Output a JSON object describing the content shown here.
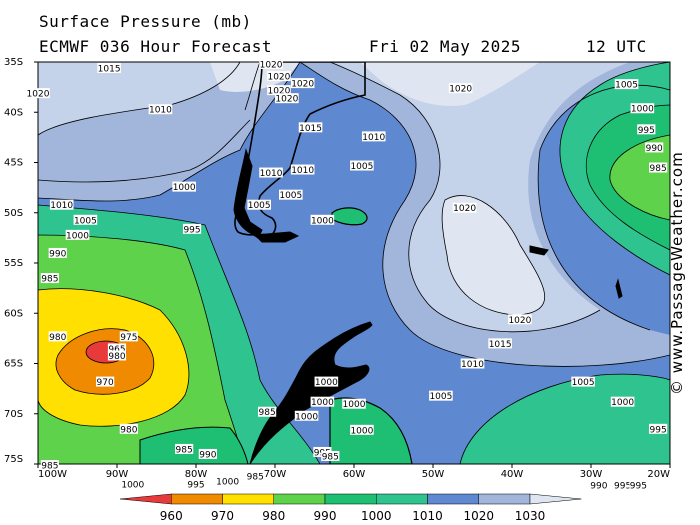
{
  "header": {
    "title": "Surface Pressure (mb)",
    "model": "ECMWF 036 Hour Forecast",
    "date": "Fri 02 May 2025",
    "time": "12 UTC"
  },
  "credit": "© www.PassageWeather.com",
  "map": {
    "lat_labels": [
      "35S",
      "40S",
      "45S",
      "50S",
      "55S",
      "60S",
      "65S",
      "70S",
      "75S"
    ],
    "lon_labels": [
      "100W",
      "90W",
      "80W",
      "70W",
      "60W",
      "50W",
      "40W",
      "30W",
      "20W"
    ],
    "isobar_labels": [
      {
        "text": "1015",
        "lon": -91,
        "lat": -35.7
      },
      {
        "text": "1020",
        "lon": -100,
        "lat": -38.2
      },
      {
        "text": "1010",
        "lon": -84.5,
        "lat": -39.8
      },
      {
        "text": "1020",
        "lon": -70.5,
        "lat": -35.3
      },
      {
        "text": "1020",
        "lon": -69.5,
        "lat": -36.5
      },
      {
        "text": "1020",
        "lon": -66.5,
        "lat": -37.2
      },
      {
        "text": "1020",
        "lon": -69.5,
        "lat": -37.9
      },
      {
        "text": "1020",
        "lon": -68.5,
        "lat": -38.7
      },
      {
        "text": "1015",
        "lon": -65.5,
        "lat": -41.6
      },
      {
        "text": "1010",
        "lon": -57.5,
        "lat": -42.5
      },
      {
        "text": "1010",
        "lon": -70.5,
        "lat": -46.1
      },
      {
        "text": "1010",
        "lon": -66.5,
        "lat": -45.8
      },
      {
        "text": "1005",
        "lon": -59,
        "lat": -45.4
      },
      {
        "text": "1005",
        "lon": -68,
        "lat": -48.3
      },
      {
        "text": "1005",
        "lon": -72,
        "lat": -49.3
      },
      {
        "text": "1000",
        "lon": -81.5,
        "lat": -47.5
      },
      {
        "text": "1000",
        "lon": -64,
        "lat": -50.8
      },
      {
        "text": "1010",
        "lon": -97,
        "lat": -49.3
      },
      {
        "text": "1005",
        "lon": -94,
        "lat": -50.8
      },
      {
        "text": "1000",
        "lon": -95,
        "lat": -52.3
      },
      {
        "text": "995",
        "lon": -80.5,
        "lat": -51.7
      },
      {
        "text": "990",
        "lon": -97.5,
        "lat": -54.1
      },
      {
        "text": "985",
        "lon": -98.5,
        "lat": -56.6
      },
      {
        "text": "980",
        "lon": -97.5,
        "lat": -62.4
      },
      {
        "text": "975",
        "lon": -88.5,
        "lat": -62.4
      },
      {
        "text": "965",
        "lon": -90,
        "lat": -63.6
      },
      {
        "text": "980",
        "lon": -90,
        "lat": -64.3
      },
      {
        "text": "970",
        "lon": -91.5,
        "lat": -66.9
      },
      {
        "text": "980",
        "lon": -88.5,
        "lat": -71.6
      },
      {
        "text": "985",
        "lon": -81.5,
        "lat": -73.6
      },
      {
        "text": "990",
        "lon": -78.5,
        "lat": -74.1
      },
      {
        "text": "985",
        "lon": -98.5,
        "lat": -75.2
      },
      {
        "text": "1000",
        "lon": -88,
        "lat": -77.1
      },
      {
        "text": "995",
        "lon": -80,
        "lat": -77.1
      },
      {
        "text": "1000",
        "lon": -76,
        "lat": -76.8
      },
      {
        "text": "985",
        "lon": -72.5,
        "lat": -76.3
      },
      {
        "text": "985",
        "lon": -71,
        "lat": -69.9
      },
      {
        "text": "1000",
        "lon": -66,
        "lat": -70.3
      },
      {
        "text": "1000",
        "lon": -63.5,
        "lat": -66.9
      },
      {
        "text": "1000",
        "lon": -64,
        "lat": -68.9
      },
      {
        "text": "1000",
        "lon": -60,
        "lat": -69.1
      },
      {
        "text": "1000",
        "lon": -59,
        "lat": -71.7
      },
      {
        "text": "995",
        "lon": -64,
        "lat": -73.9
      },
      {
        "text": "985",
        "lon": -63,
        "lat": -74.3
      },
      {
        "text": "1020",
        "lon": -46.5,
        "lat": -37.7
      },
      {
        "text": "1020",
        "lon": -46,
        "lat": -49.6
      },
      {
        "text": "1020",
        "lon": -39,
        "lat": -60.7
      },
      {
        "text": "1015",
        "lon": -41.5,
        "lat": -63.1
      },
      {
        "text": "1010",
        "lon": -45,
        "lat": -65.1
      },
      {
        "text": "1005",
        "lon": -49,
        "lat": -68.3
      },
      {
        "text": "1005",
        "lon": -31,
        "lat": -66.9
      },
      {
        "text": "1000",
        "lon": -26,
        "lat": -68.9
      },
      {
        "text": "995",
        "lon": -21.5,
        "lat": -71.6
      },
      {
        "text": "1005",
        "lon": -25.5,
        "lat": -37.3
      },
      {
        "text": "1000",
        "lon": -23.5,
        "lat": -39.7
      },
      {
        "text": "995",
        "lon": -23,
        "lat": -41.8
      },
      {
        "text": "990",
        "lon": -22,
        "lat": -43.6
      },
      {
        "text": "985",
        "lon": -21.5,
        "lat": -45.6
      },
      {
        "text": "990",
        "lon": -29,
        "lat": -77.2
      },
      {
        "text": "995",
        "lon": -26,
        "lat": -77.2
      },
      {
        "text": "995",
        "lon": -24,
        "lat": -77.2
      }
    ]
  },
  "legend": {
    "labels": [
      "960",
      "970",
      "980",
      "990",
      "1000",
      "1010",
      "1020",
      "1030"
    ],
    "colors": [
      "#e83a3a",
      "#f08a00",
      "#ffe000",
      "#5ed24a",
      "#1fbf73",
      "#2fc48f",
      "#5e88d0",
      "#a2b6dc",
      "#dfe6f1"
    ]
  }
}
